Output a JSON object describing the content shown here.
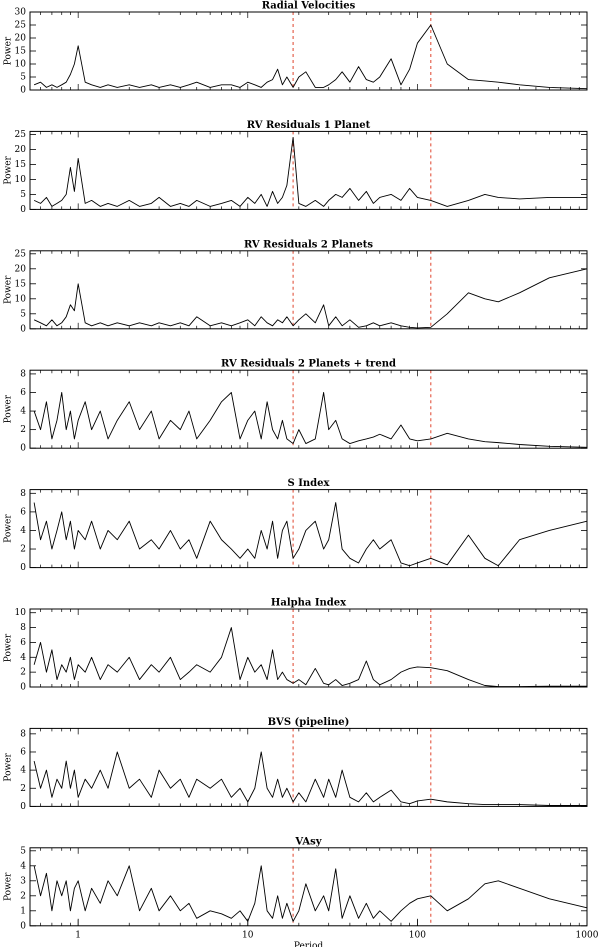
{
  "chart_data": [
    {
      "type": "line",
      "title": "Radial Velocities",
      "ylabel": "Power",
      "color": "#000000",
      "vline_color": "#e0442c",
      "vlines": [
        18.5,
        120
      ],
      "log_x": true,
      "xlim": [
        0.52,
        1000
      ],
      "ylim": [
        0,
        30
      ],
      "yticks": [
        0,
        5,
        10,
        15,
        20,
        25,
        30
      ],
      "x": [
        0.55,
        0.6,
        0.65,
        0.7,
        0.75,
        0.8,
        0.85,
        0.9,
        0.95,
        1,
        1.1,
        1.2,
        1.35,
        1.5,
        1.7,
        2,
        2.3,
        2.7,
        3,
        3.5,
        4,
        4.5,
        5,
        6,
        7,
        8,
        9,
        10,
        11,
        12,
        13,
        14,
        15,
        16,
        17,
        18.5,
        20,
        22,
        25,
        28,
        30,
        33,
        36,
        40,
        45,
        50,
        55,
        60,
        70,
        80,
        90,
        100,
        120,
        150,
        200,
        250,
        300,
        400,
        600,
        1000
      ],
      "values": [
        2,
        3,
        1,
        2,
        1,
        2,
        3,
        6,
        10,
        17,
        3,
        2,
        1,
        2,
        1,
        2,
        1,
        2,
        1,
        2,
        1,
        2,
        3,
        1,
        2,
        2,
        1,
        3,
        2,
        1,
        3,
        4,
        8,
        2,
        5,
        1,
        5,
        7,
        1,
        1,
        2,
        4,
        7,
        3,
        9,
        4,
        3,
        5,
        12,
        2,
        8,
        18,
        25,
        10,
        4,
        3.5,
        3,
        2,
        1,
        0.5
      ]
    },
    {
      "type": "line",
      "title": "RV Residuals 1 Planet",
      "ylabel": "Power",
      "color": "#000000",
      "vline_color": "#e0442c",
      "vlines": [
        18.5,
        120
      ],
      "log_x": true,
      "xlim": [
        0.52,
        1000
      ],
      "ylim": [
        0,
        26
      ],
      "yticks": [
        0,
        5,
        10,
        15,
        20,
        25
      ],
      "x": [
        0.55,
        0.6,
        0.65,
        0.7,
        0.75,
        0.8,
        0.85,
        0.9,
        0.95,
        1,
        1.1,
        1.2,
        1.35,
        1.5,
        1.7,
        2,
        2.3,
        2.7,
        3,
        3.5,
        4,
        4.5,
        5,
        6,
        7,
        8,
        9,
        10,
        11,
        12,
        13,
        14,
        15,
        16,
        17,
        18.5,
        20,
        22,
        25,
        28,
        30,
        33,
        36,
        40,
        45,
        50,
        55,
        60,
        70,
        80,
        90,
        100,
        120,
        150,
        200,
        250,
        300,
        400,
        600,
        1000
      ],
      "values": [
        3,
        2,
        4,
        1,
        2,
        3,
        5,
        14,
        6,
        17,
        2,
        3,
        1,
        2,
        1,
        3,
        1,
        2,
        4,
        1,
        2,
        1,
        3,
        1,
        2,
        3,
        1,
        4,
        2,
        5,
        1,
        6,
        2,
        4,
        8,
        24,
        2,
        1,
        3,
        1,
        3,
        5,
        4,
        7,
        3,
        6,
        2,
        4,
        5,
        3,
        7,
        4,
        3,
        1,
        3,
        5,
        4,
        3.5,
        4,
        4
      ]
    },
    {
      "type": "line",
      "title": "RV Residuals 2 Planets",
      "ylabel": "Power",
      "color": "#000000",
      "vline_color": "#e0442c",
      "vlines": [
        18.5,
        120
      ],
      "log_x": true,
      "xlim": [
        0.52,
        1000
      ],
      "ylim": [
        0,
        26
      ],
      "yticks": [
        0,
        5,
        10,
        15,
        20,
        25
      ],
      "x": [
        0.55,
        0.6,
        0.65,
        0.7,
        0.75,
        0.8,
        0.85,
        0.9,
        0.95,
        1,
        1.1,
        1.2,
        1.35,
        1.5,
        1.7,
        2,
        2.3,
        2.7,
        3,
        3.5,
        4,
        4.5,
        5,
        6,
        7,
        8,
        9,
        10,
        11,
        12,
        13,
        14,
        15,
        16,
        17,
        18.5,
        20,
        22,
        25,
        28,
        30,
        33,
        36,
        40,
        45,
        50,
        55,
        60,
        70,
        80,
        90,
        100,
        120,
        150,
        200,
        250,
        300,
        400,
        600,
        1000
      ],
      "values": [
        3,
        2,
        1,
        3,
        1,
        2,
        4,
        8,
        6,
        15,
        2,
        1,
        2,
        1,
        2,
        1,
        2,
        1,
        2,
        1,
        2,
        1,
        4,
        1,
        2,
        1,
        2,
        3,
        1,
        4,
        2,
        1,
        3,
        2,
        4,
        1,
        3,
        5,
        2,
        8,
        1,
        4,
        1,
        3,
        0.5,
        1,
        2,
        1,
        2,
        1,
        0.5,
        0.3,
        0.5,
        5,
        12,
        10,
        9,
        12,
        17,
        20
      ]
    },
    {
      "type": "line",
      "title": "RV Residuals 2 Planets + trend",
      "ylabel": "Power",
      "color": "#000000",
      "vline_color": "#e0442c",
      "vlines": [
        18.5,
        120
      ],
      "log_x": true,
      "xlim": [
        0.52,
        1000
      ],
      "ylim": [
        0,
        8.4
      ],
      "yticks": [
        0,
        2,
        4,
        6,
        8
      ],
      "x": [
        0.55,
        0.6,
        0.65,
        0.7,
        0.75,
        0.8,
        0.85,
        0.9,
        0.95,
        1,
        1.1,
        1.2,
        1.35,
        1.5,
        1.7,
        2,
        2.3,
        2.7,
        3,
        3.5,
        4,
        4.5,
        5,
        6,
        7,
        8,
        9,
        10,
        11,
        12,
        13,
        14,
        15,
        16,
        17,
        18.5,
        20,
        22,
        25,
        28,
        30,
        33,
        36,
        40,
        45,
        50,
        55,
        60,
        70,
        80,
        90,
        100,
        120,
        150,
        200,
        250,
        300,
        400,
        600,
        1000
      ],
      "values": [
        4,
        2,
        5,
        1,
        3,
        6,
        2,
        4,
        1,
        3,
        5,
        2,
        4,
        1,
        3,
        5,
        2,
        4,
        1,
        3,
        2,
        4,
        1,
        3,
        5,
        6,
        1,
        3,
        4,
        1,
        5,
        2,
        1,
        3,
        1,
        0.5,
        2,
        0.5,
        1,
        6,
        2,
        3,
        1,
        0.5,
        0.8,
        1,
        1.2,
        1.5,
        1,
        2.5,
        1,
        0.8,
        1,
        1.6,
        1,
        0.7,
        0.6,
        0.4,
        0.2,
        0.1
      ]
    },
    {
      "type": "line",
      "title": "S Index",
      "ylabel": "Power",
      "color": "#000000",
      "vline_color": "#e0442c",
      "vlines": [
        18.5,
        120
      ],
      "log_x": true,
      "xlim": [
        0.52,
        1000
      ],
      "ylim": [
        0,
        8.4
      ],
      "yticks": [
        0,
        2,
        4,
        6,
        8
      ],
      "x": [
        0.55,
        0.6,
        0.65,
        0.7,
        0.75,
        0.8,
        0.85,
        0.9,
        0.95,
        1,
        1.1,
        1.2,
        1.35,
        1.5,
        1.7,
        2,
        2.3,
        2.7,
        3,
        3.5,
        4,
        4.5,
        5,
        6,
        7,
        8,
        9,
        10,
        11,
        12,
        13,
        14,
        15,
        16,
        17,
        18.5,
        20,
        22,
        25,
        28,
        30,
        33,
        36,
        40,
        45,
        50,
        55,
        60,
        70,
        80,
        90,
        100,
        120,
        150,
        200,
        250,
        300,
        400,
        600,
        1000
      ],
      "values": [
        7,
        3,
        5,
        2,
        4,
        6,
        3,
        5,
        2,
        4,
        3,
        5,
        2,
        4,
        3,
        5,
        2,
        3,
        2,
        4,
        2,
        3,
        1,
        5,
        3,
        2,
        1,
        2,
        1,
        4,
        2,
        5,
        1,
        4,
        5,
        1,
        2,
        4,
        5,
        2,
        3,
        7,
        2,
        1,
        0.5,
        2,
        3,
        2,
        3,
        0.5,
        0.2,
        0.5,
        1,
        0.3,
        3.5,
        1,
        0.2,
        3,
        4,
        5
      ]
    },
    {
      "type": "line",
      "title": "Halpha Index",
      "ylabel": "Power",
      "color": "#000000",
      "vline_color": "#e0442c",
      "vlines": [
        18.5,
        120
      ],
      "log_x": true,
      "xlim": [
        0.52,
        1000
      ],
      "ylim": [
        0,
        10.5
      ],
      "yticks": [
        0,
        2,
        4,
        6,
        8,
        10
      ],
      "x": [
        0.55,
        0.6,
        0.65,
        0.7,
        0.75,
        0.8,
        0.85,
        0.9,
        0.95,
        1,
        1.1,
        1.2,
        1.35,
        1.5,
        1.7,
        2,
        2.3,
        2.7,
        3,
        3.5,
        4,
        4.5,
        5,
        6,
        7,
        8,
        9,
        10,
        11,
        12,
        13,
        14,
        15,
        16,
        17,
        18.5,
        20,
        22,
        25,
        28,
        30,
        33,
        36,
        40,
        45,
        50,
        55,
        60,
        70,
        80,
        90,
        100,
        120,
        150,
        200,
        250,
        300,
        400,
        600,
        1000
      ],
      "values": [
        3,
        6,
        2,
        5,
        1,
        3,
        2,
        4,
        1,
        3,
        2,
        4,
        1,
        3,
        2,
        4,
        1,
        3,
        2,
        4,
        1,
        2,
        3,
        2,
        4,
        8,
        1,
        4,
        2,
        3,
        1,
        5,
        1,
        2,
        1,
        0.5,
        1,
        0.3,
        2.5,
        0.5,
        0.3,
        1,
        0.2,
        0.5,
        1,
        3.5,
        1,
        0.3,
        1,
        2,
        2.5,
        2.7,
        2.6,
        2.2,
        1,
        0.2,
        0.05,
        0.05,
        0.1,
        0.1
      ]
    },
    {
      "type": "line",
      "title": "BVS (pipeline)",
      "ylabel": "Power",
      "color": "#000000",
      "vline_color": "#e0442c",
      "vlines": [
        18.5,
        120
      ],
      "log_x": true,
      "xlim": [
        0.52,
        1000
      ],
      "ylim": [
        0,
        8.6
      ],
      "yticks": [
        0,
        2,
        4,
        6,
        8
      ],
      "x": [
        0.55,
        0.6,
        0.65,
        0.7,
        0.75,
        0.8,
        0.85,
        0.9,
        0.95,
        1,
        1.1,
        1.2,
        1.35,
        1.5,
        1.7,
        2,
        2.3,
        2.7,
        3,
        3.5,
        4,
        4.5,
        5,
        6,
        7,
        8,
        9,
        10,
        11,
        12,
        13,
        14,
        15,
        16,
        17,
        18.5,
        20,
        22,
        25,
        28,
        30,
        33,
        36,
        40,
        45,
        50,
        55,
        60,
        70,
        80,
        90,
        100,
        120,
        150,
        200,
        250,
        300,
        400,
        600,
        1000
      ],
      "values": [
        5,
        2,
        4,
        1,
        3,
        2,
        5,
        2,
        4,
        1,
        3,
        2,
        4,
        2,
        6,
        2,
        3,
        1,
        4,
        2,
        3,
        1,
        3,
        2,
        3,
        1,
        2,
        0.5,
        2,
        6,
        2,
        1,
        3,
        1,
        2,
        0.5,
        1.5,
        0.5,
        3,
        1,
        3,
        1,
        4,
        1,
        0.5,
        1.5,
        0.5,
        1,
        1.8,
        0.5,
        0.3,
        0.6,
        0.8,
        0.5,
        0.3,
        0.2,
        0.2,
        0.2,
        0.1,
        0.1
      ]
    },
    {
      "type": "line",
      "title": "VAsy",
      "ylabel": "Power",
      "xlabel": "Period",
      "color": "#000000",
      "vline_color": "#e0442c",
      "vlines": [
        18.5,
        120
      ],
      "log_x": true,
      "xlim": [
        0.52,
        1000
      ],
      "ylim": [
        0,
        5.2
      ],
      "yticks": [
        0,
        1,
        2,
        3,
        4,
        5
      ],
      "xticks": [
        1,
        10,
        100,
        1000
      ],
      "x": [
        0.55,
        0.6,
        0.65,
        0.7,
        0.75,
        0.8,
        0.85,
        0.9,
        0.95,
        1,
        1.1,
        1.2,
        1.35,
        1.5,
        1.7,
        2,
        2.3,
        2.7,
        3,
        3.5,
        4,
        4.5,
        5,
        6,
        7,
        8,
        9,
        10,
        11,
        12,
        13,
        14,
        15,
        16,
        17,
        18.5,
        20,
        22,
        25,
        28,
        30,
        33,
        36,
        40,
        45,
        50,
        55,
        60,
        70,
        80,
        90,
        100,
        120,
        150,
        200,
        250,
        300,
        400,
        600,
        1000
      ],
      "values": [
        4,
        2,
        3.5,
        1,
        3,
        2,
        3,
        1,
        2.5,
        3,
        1,
        2.5,
        1.5,
        3,
        2,
        4,
        1,
        2.5,
        1,
        2,
        1,
        1.5,
        0.5,
        1,
        0.8,
        0.5,
        1,
        0.3,
        1.5,
        4,
        1,
        0.5,
        2,
        0.5,
        1.5,
        0.3,
        1,
        2.8,
        1,
        2,
        1,
        3.8,
        0.5,
        2,
        0.5,
        1.5,
        0.5,
        1,
        0.3,
        1,
        1.5,
        1.8,
        2,
        1,
        1.8,
        2.8,
        3,
        2.5,
        1.8,
        1.2
      ]
    }
  ]
}
